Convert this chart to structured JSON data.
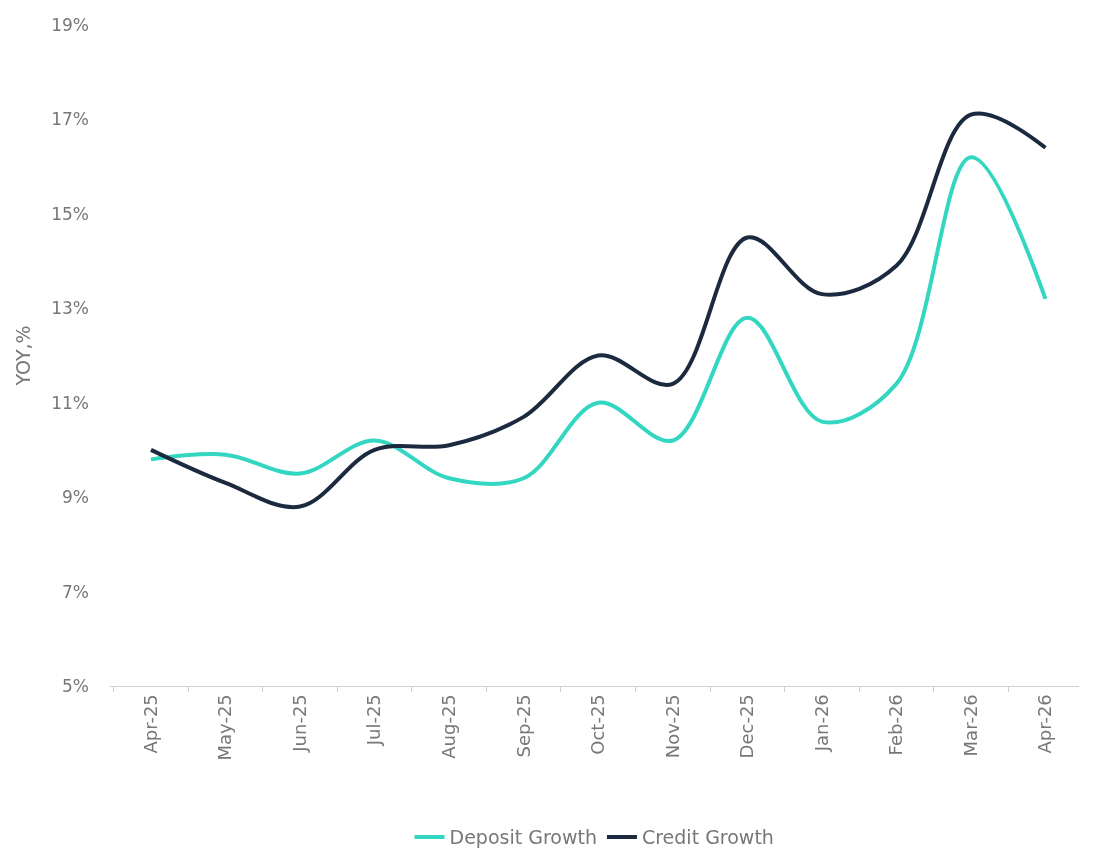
{
  "chart_data": {
    "type": "line",
    "ylabel": "YOY,%",
    "categories": [
      "Apr-25",
      "May-25",
      "Jun-25",
      "Jul-25",
      "Aug-25",
      "Sep-25",
      "Oct-25",
      "Nov-25",
      "Dec-25",
      "Jan-26",
      "Feb-26",
      "Mar-26",
      "Apr-26"
    ],
    "series": [
      {
        "name": "Deposit Growth",
        "color": "#33d6c0",
        "values": [
          9.8,
          9.9,
          9.5,
          10.2,
          9.4,
          9.4,
          11.0,
          10.2,
          12.8,
          10.6,
          11.4,
          16.2,
          13.2
        ]
      },
      {
        "name": "Credit Growth",
        "color": "#1b2a3f",
        "values": [
          10.0,
          9.3,
          8.8,
          10.0,
          10.1,
          10.7,
          12.0,
          11.4,
          14.5,
          13.3,
          13.9,
          17.1,
          16.4
        ]
      }
    ],
    "ylim": [
      5,
      19
    ],
    "yticks": [
      {
        "value": 5,
        "label": "5%"
      },
      {
        "value": 7,
        "label": "7%"
      },
      {
        "value": 9,
        "label": "9%"
      },
      {
        "value": 11,
        "label": "11%"
      },
      {
        "value": 13,
        "label": "13%"
      },
      {
        "value": 15,
        "label": "15%"
      },
      {
        "value": 17,
        "label": "17%"
      },
      {
        "value": 19,
        "label": "19%"
      }
    ],
    "legend": "bottom",
    "marker": "none",
    "line_style": "solid"
  }
}
